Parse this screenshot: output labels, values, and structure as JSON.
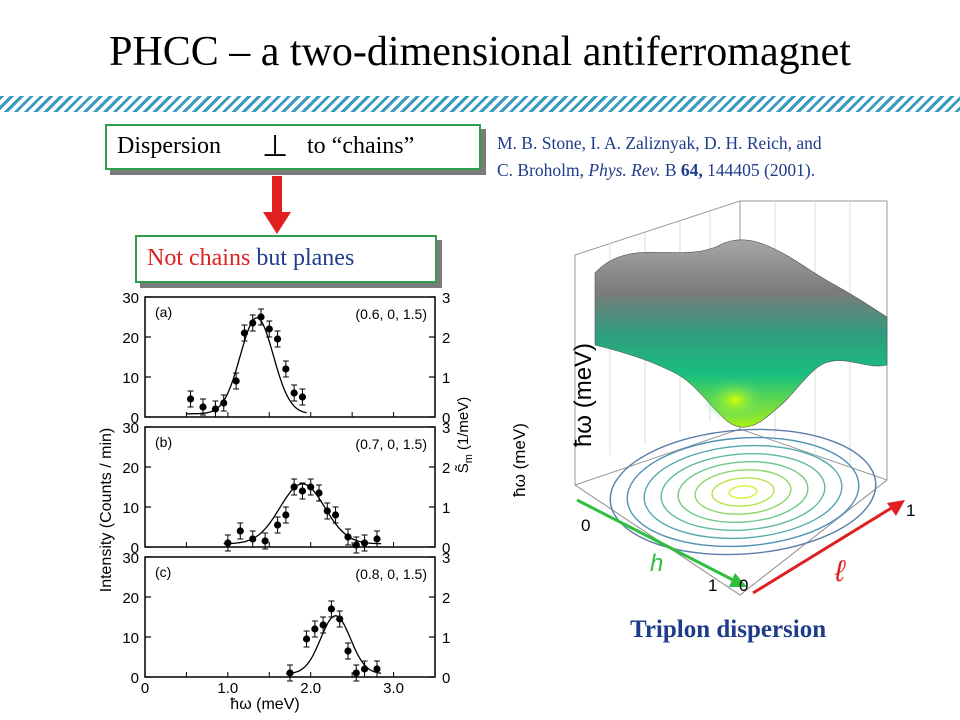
{
  "slide": {
    "title": "PHCC – a two-dimensional antiferromagnet",
    "dispersion_box": {
      "text_before": "Dispersion",
      "perp_symbol": "⊥",
      "text_after": "to “chains”"
    },
    "planes_box": {
      "text_red": "Not chains",
      "text_blue": " but planes"
    },
    "reference": {
      "line1": "M. B. Stone, I. A. Zaliznyak, D. H. Reich, and",
      "line2_authors": "C. Broholm, ",
      "line2_journal": "Phys. Rev.",
      "line2_series": " B ",
      "line2_volume": "64,",
      "line2_rest": " 144405 (2001)."
    },
    "caption": "Triplon dispersion",
    "colors": {
      "accent_blue": "#1f3c8c",
      "red": "#e02020",
      "box_border": "#2e9e4a",
      "hatch": "#3a9bbf"
    }
  },
  "chart_data": [
    {
      "type": "scatter",
      "panel": "(a)",
      "q_label": "(0.6, 0, 1.5)",
      "x": [
        0.55,
        0.7,
        0.85,
        0.95,
        1.1,
        1.2,
        1.3,
        1.4,
        1.5,
        1.6,
        1.7,
        1.8,
        1.9
      ],
      "y": [
        4.5,
        2.5,
        2.0,
        3.5,
        9.0,
        21.0,
        23.5,
        25.0,
        22.0,
        19.5,
        12.0,
        6.0,
        5.0
      ],
      "fit_center": 1.35,
      "fit_height": 24,
      "fit_sigma": 0.2,
      "left_ticks": [
        "0",
        "10",
        "20",
        "30"
      ],
      "right_ticks": [
        "0",
        "1",
        "2",
        "3"
      ],
      "ylim": [
        0,
        30
      ],
      "xlim": [
        0,
        3.5
      ]
    },
    {
      "type": "scatter",
      "panel": "(b)",
      "q_label": "(0.7, 0, 1.5)",
      "x": [
        1.0,
        1.15,
        1.3,
        1.45,
        1.6,
        1.7,
        1.8,
        1.9,
        2.0,
        2.1,
        2.2,
        2.3,
        2.45,
        2.55,
        2.65,
        2.8
      ],
      "y": [
        1.0,
        4.0,
        2.0,
        1.5,
        5.5,
        8.0,
        15.0,
        14.0,
        15.0,
        13.5,
        9.0,
        8.0,
        2.5,
        0.5,
        1.0,
        2.0
      ],
      "fit_center": 1.9,
      "fit_height": 15,
      "fit_sigma": 0.27,
      "left_ticks": [
        "0",
        "10",
        "20",
        "30"
      ],
      "right_ticks": [
        "0",
        "1",
        "2",
        "3"
      ],
      "ylim": [
        0,
        30
      ],
      "xlim": [
        0,
        3.5
      ]
    },
    {
      "type": "scatter",
      "panel": "(c)",
      "q_label": "(0.8, 0, 1.5)",
      "x": [
        1.75,
        1.95,
        2.05,
        2.15,
        2.25,
        2.35,
        2.45,
        2.55,
        2.65,
        2.8
      ],
      "y": [
        1.0,
        9.5,
        12.0,
        13.0,
        17.0,
        14.5,
        6.5,
        1.0,
        2.0,
        2.0
      ],
      "fit_center": 2.3,
      "fit_height": 14.5,
      "fit_sigma": 0.18,
      "left_ticks": [
        "0",
        "10",
        "20",
        "30"
      ],
      "right_ticks": [
        "0",
        "1",
        "2",
        "3"
      ],
      "ylim": [
        0,
        30
      ],
      "xlim": [
        0,
        3.5
      ],
      "x_ticks": [
        {
          "value": 0,
          "label": "0"
        },
        {
          "value": 1,
          "label": "1.0"
        },
        {
          "value": 2,
          "label": "2.0"
        },
        {
          "value": 3,
          "label": "3.0"
        }
      ]
    }
  ],
  "chart_axes": {
    "ylabel_left": "Intensity (Counts / min)",
    "ylabel_right": "S̃ m (1/meV)",
    "ylabel_right_sym": "S̃",
    "ylabel_right_sub": "m",
    "ylabel_right_unit": "(1/meV)",
    "xlabel": "ħω (meV)"
  },
  "surface_plot": {
    "z_label_inner": "ħω (meV)",
    "z_label_outer": "ħω (meV)",
    "h_label": "h",
    "l_label": "ℓ",
    "h_tick_start": "0",
    "h_tick_end": "1",
    "l_tick_start": "0",
    "l_tick_end": "1",
    "h_arrow_color": "#2fbf3f",
    "l_arrow_color": "#e02020"
  }
}
